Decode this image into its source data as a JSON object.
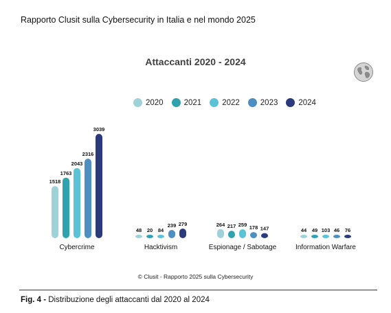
{
  "header": {
    "report_title": "Rapporto Clusit sulla Cybersecurity in Italia e nel mondo 2025"
  },
  "footer": {
    "copyright": "© Clusit - Rapporto 2025 sulla Cybersecurity",
    "figure_label": "Fig. 4 - ",
    "figure_caption": "Distribuzione degli attaccanti dal 2020 al 2024"
  },
  "icons": {
    "globe": "globe-icon"
  },
  "chart_data": {
    "type": "bar",
    "title": "Attaccanti 2020 - 2024",
    "categories": [
      "Cybercrime",
      "Hacktivism",
      "Espionage / Sabotage",
      "Information Warfare"
    ],
    "series": [
      {
        "name": "2020",
        "color": "#9fd1d8",
        "values": [
          1518,
          48,
          264,
          44
        ]
      },
      {
        "name": "2021",
        "color": "#2fa3ad",
        "values": [
          1763,
          20,
          217,
          49
        ]
      },
      {
        "name": "2022",
        "color": "#5cc2d6",
        "values": [
          2043,
          84,
          259,
          103
        ]
      },
      {
        "name": "2023",
        "color": "#4f8ec0",
        "values": [
          2316,
          239,
          178,
          46
        ]
      },
      {
        "name": "2024",
        "color": "#2b3a7c",
        "values": [
          3039,
          279,
          147,
          76
        ]
      }
    ],
    "legend_position": "top",
    "grid": false,
    "ylim": [
      0,
      3039
    ]
  }
}
